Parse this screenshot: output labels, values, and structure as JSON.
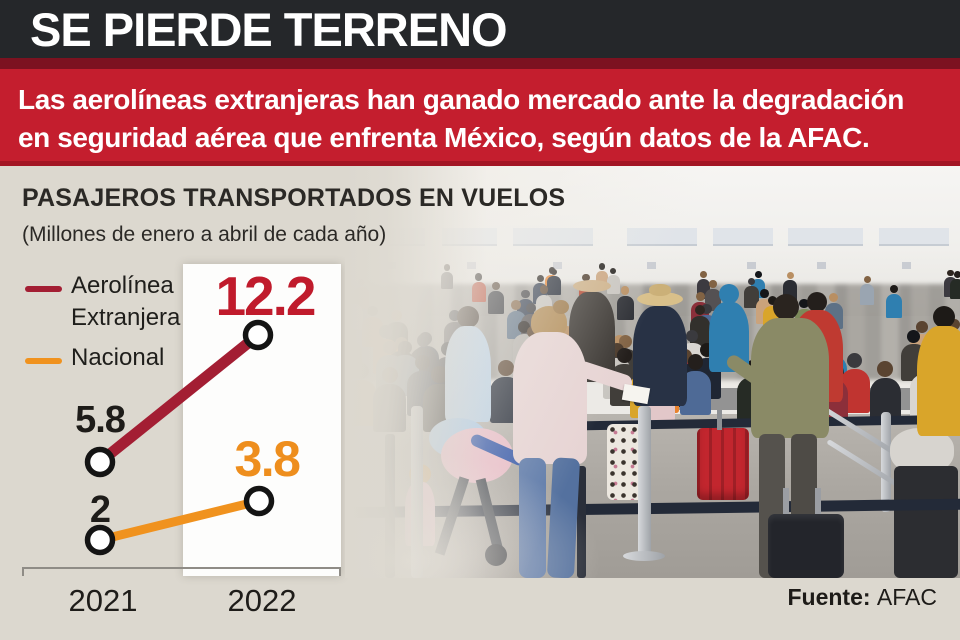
{
  "header": {
    "title": "SE PIERDE TERRENO"
  },
  "banner": {
    "line1": "Las aerolíneas extranjeras han ganado mercado ante la degradación",
    "line2": "en seguridad aérea que enfrenta México, según datos de la AFAC."
  },
  "chart_data": {
    "type": "line",
    "title": "PASAJEROS TRANSPORTADOS EN VUELOS",
    "subtitle": "(Millones de enero a abril de cada año)",
    "categories": [
      "2021",
      "2022"
    ],
    "series": [
      {
        "name": "Aerolínea Extranjera",
        "color": "#a31e33",
        "label_color": "#c01b2c",
        "values": [
          5.8,
          12.2
        ]
      },
      {
        "name": "Nacional",
        "color": "#f0921e",
        "label_color": "#ee8e1d",
        "values": [
          2,
          3.8
        ]
      }
    ],
    "legend_position": "left",
    "grid": false,
    "highlighted_category": "2022",
    "marker": "open-circle"
  },
  "source": {
    "label": "Fuente:",
    "value": "AFAC"
  },
  "colors": {
    "header_bg": "#25272a",
    "divider_maroon": "#7c1220",
    "banner_bg": "#c41e2e",
    "content_bg": "#dcd8cf",
    "highlight_column_bg": "#fdfdfc",
    "axis": "#8f8c86",
    "text_dark": "#1e1c19"
  },
  "photo": {
    "crowd_palette": [
      "#23242a",
      "#2b2d33",
      "#32302c",
      "#1f2633",
      "#3c3a40",
      "#262b25",
      "#413e3a",
      "#2f3a4d",
      "#545153",
      "#23242a",
      "#2b2d33",
      "#1f2633",
      "#4e6a96",
      "#5d7186",
      "#c8c5c0",
      "#d9d6d1",
      "#b5b2ad",
      "#9aa5b1",
      "#e8822d",
      "#e8822d",
      "#c03430",
      "#b6452f",
      "#2f7fb0",
      "#d9a52a",
      "#7c8a5a",
      "#8c2f3a",
      "#e2c7c9",
      "#caa37c"
    ],
    "hair_palette": [
      "#1d1a17",
      "#241f1c",
      "#2e2620",
      "#4a392a",
      "#5a4431",
      "#826344",
      "#b98f62",
      "#3a3a3e",
      "#14161a"
    ]
  }
}
